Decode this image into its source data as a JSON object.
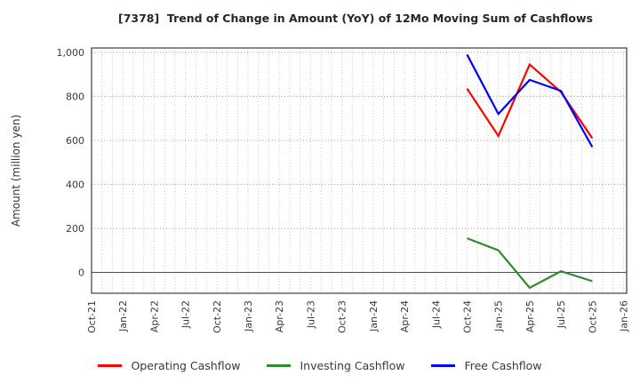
{
  "figure": {
    "title": "[7378]  Trend of Change in Amount (YoY) of 12Mo Moving Sum of Cashflows"
  },
  "chart_data": {
    "type": "line",
    "title": "[7378]  Trend of Change in Amount (YoY) of 12Mo Moving Sum of Cashflows",
    "xlabel": "",
    "ylabel": "Amount (million yen)",
    "x_tick_labels": [
      "Oct-21",
      "Jan-22",
      "Apr-22",
      "Jul-22",
      "Oct-22",
      "Jan-23",
      "Apr-23",
      "Jul-23",
      "Oct-23",
      "Jan-24",
      "Apr-24",
      "Jul-24",
      "Oct-24",
      "Jan-25",
      "Apr-25",
      "Jul-25",
      "Oct-25",
      "Jan-26"
    ],
    "months_per_tick": 3,
    "x_total_months": 51.3,
    "ylim": [
      -95,
      1020
    ],
    "yticks": [
      0,
      200,
      400,
      600,
      800,
      1000
    ],
    "ytick_labels": [
      "0",
      "200",
      "400",
      "600",
      "800",
      "1,000"
    ],
    "grid": "on (dotted; vertical every month, horizontal every 200)",
    "zero_line": true,
    "legend_position": "bottom center",
    "series": [
      {
        "name": "Operating Cashflow",
        "color": "#ff0000",
        "x_labels": [
          "Oct-24",
          "Jan-25",
          "Apr-25",
          "Jul-25",
          "Oct-25"
        ],
        "x_months": [
          36,
          39,
          42,
          45,
          48
        ],
        "values": [
          835,
          620,
          945,
          820,
          610
        ]
      },
      {
        "name": "Investing Cashflow",
        "color": "#2e8b2e",
        "x_labels": [
          "Oct-24",
          "Jan-25",
          "Apr-25",
          "Jul-25",
          "Oct-25"
        ],
        "x_months": [
          36,
          39,
          42,
          45,
          48
        ],
        "values": [
          155,
          100,
          -70,
          5,
          -40
        ]
      },
      {
        "name": "Free Cashflow",
        "color": "#0000ff",
        "x_labels": [
          "Oct-24",
          "Jan-25",
          "Apr-25",
          "Jul-25",
          "Oct-25"
        ],
        "x_months": [
          36,
          39,
          42,
          45,
          48
        ],
        "values": [
          990,
          720,
          875,
          825,
          570
        ]
      }
    ]
  }
}
